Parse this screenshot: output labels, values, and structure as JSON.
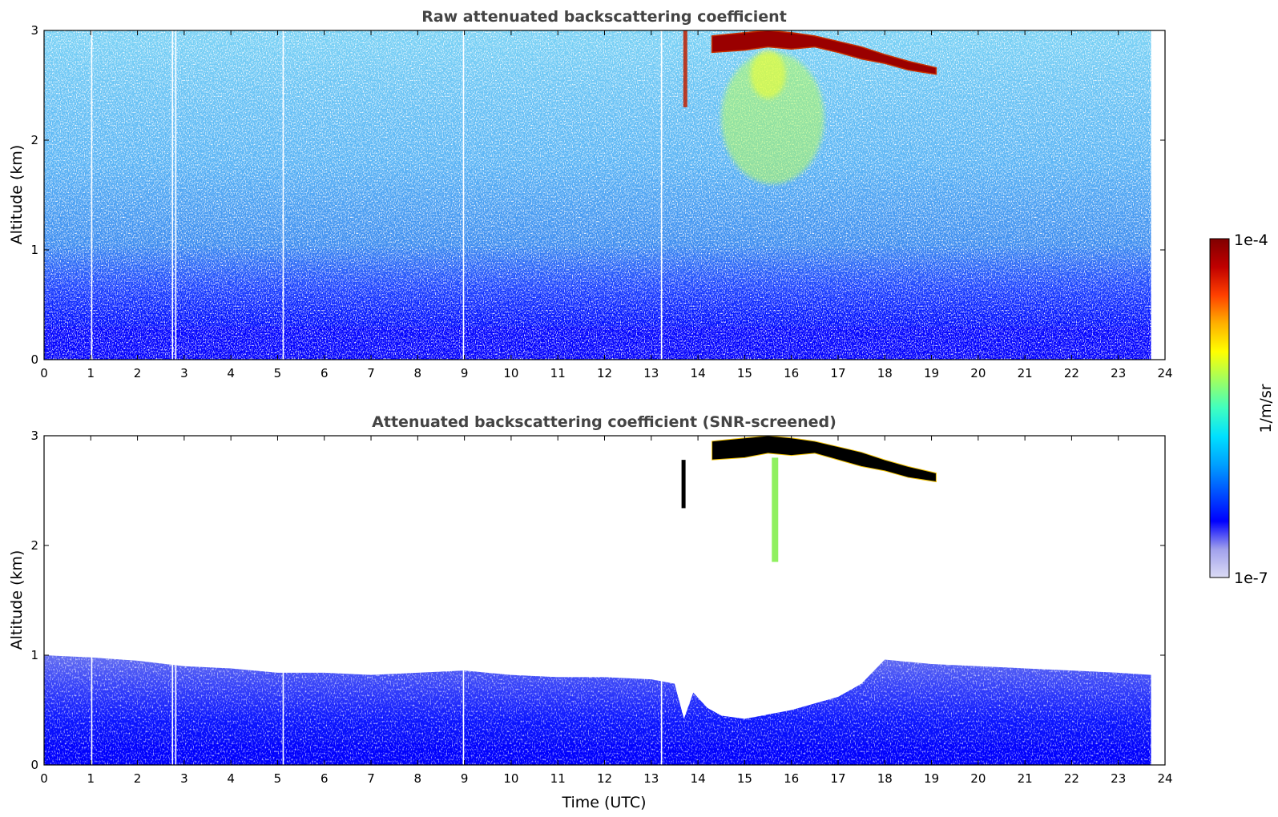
{
  "chart_data": [
    {
      "type": "heatmap",
      "title": "Raw attenuated backscattering coefficient",
      "xlabel": "",
      "ylabel": "Altitude (km)",
      "xlim": [
        0,
        24
      ],
      "ylim": [
        0,
        3
      ],
      "x_ticks": [
        "0",
        "1",
        "2",
        "3",
        "4",
        "5",
        "6",
        "7",
        "8",
        "9",
        "10",
        "11",
        "12",
        "13",
        "14",
        "15",
        "16",
        "17",
        "18",
        "19",
        "20",
        "21",
        "22",
        "23",
        "24"
      ],
      "y_ticks": [
        "0",
        "1",
        "2",
        "3"
      ],
      "data_end_time": 23.7,
      "dropout_times": [
        1.02,
        2.75,
        2.82,
        5.12,
        8.98,
        13.22
      ],
      "surface_layer_top_km": 0.6,
      "cloud_layer": {
        "times": [
          14.3,
          15.0,
          15.5,
          16.0,
          16.5,
          17.0,
          17.5,
          18.0,
          18.5,
          19.1
        ],
        "base_km": [
          2.8,
          2.82,
          2.85,
          2.83,
          2.85,
          2.8,
          2.74,
          2.7,
          2.64,
          2.6
        ],
        "top_km": [
          2.95,
          2.98,
          3.0,
          2.98,
          2.95,
          2.9,
          2.85,
          2.78,
          2.72,
          2.66
        ]
      },
      "virga_plume": {
        "time_range": [
          14.4,
          16.6
        ],
        "center": 15.6,
        "altitude_range_km": [
          1.6,
          2.8
        ]
      },
      "cloud_streak": {
        "time": 13.72,
        "altitude_range_km": [
          2.3,
          3.0
        ]
      }
    },
    {
      "type": "heatmap",
      "title": "Attenuated backscattering coefficient (SNR-screened)",
      "xlabel": "Time (UTC)",
      "ylabel": "Altitude (km)",
      "xlim": [
        0,
        24
      ],
      "ylim": [
        0,
        3
      ],
      "x_ticks": [
        "0",
        "1",
        "2",
        "3",
        "4",
        "5",
        "6",
        "7",
        "8",
        "9",
        "10",
        "11",
        "12",
        "13",
        "14",
        "15",
        "16",
        "17",
        "18",
        "19",
        "20",
        "21",
        "22",
        "23",
        "24"
      ],
      "y_ticks": [
        "0",
        "1",
        "2",
        "3"
      ],
      "data_end_time": 23.7,
      "boundary_layer_top": {
        "times": [
          0,
          1,
          2,
          3,
          4,
          5,
          6,
          7,
          8,
          9,
          10,
          11,
          12,
          13,
          13.5,
          13.7,
          13.9,
          14.2,
          14.5,
          15.0,
          15.5,
          16.0,
          16.5,
          17.0,
          17.5,
          18,
          19,
          20,
          21,
          22,
          23,
          23.7
        ],
        "altitude_km": [
          1.0,
          0.98,
          0.95,
          0.9,
          0.88,
          0.84,
          0.84,
          0.82,
          0.84,
          0.86,
          0.82,
          0.8,
          0.8,
          0.78,
          0.74,
          0.42,
          0.66,
          0.52,
          0.45,
          0.42,
          0.46,
          0.5,
          0.56,
          0.62,
          0.74,
          0.96,
          0.92,
          0.9,
          0.88,
          0.86,
          0.84,
          0.82
        ]
      },
      "cloud_layer": {
        "times": [
          14.3,
          15.0,
          15.5,
          16.0,
          16.5,
          17.0,
          17.5,
          18.0,
          18.5,
          19.1
        ],
        "base_km": [
          2.78,
          2.8,
          2.84,
          2.82,
          2.84,
          2.78,
          2.72,
          2.68,
          2.62,
          2.58
        ],
        "top_km": [
          2.95,
          2.98,
          3.0,
          2.98,
          2.95,
          2.9,
          2.85,
          2.78,
          2.72,
          2.66
        ]
      },
      "virga_streak": {
        "time": 15.65,
        "altitude_range_km": [
          1.85,
          2.8
        ]
      }
    }
  ],
  "colorbar": {
    "label": "1/m/sr",
    "max_label": "1e-4",
    "min_label": "1e-7",
    "scale": "log",
    "range": [
      1e-07,
      0.0001
    ],
    "colormap": [
      "#dcdcf5",
      "#a0a0ec",
      "#0000ff",
      "#0050ff",
      "#00a0ff",
      "#00e0ff",
      "#40ffc0",
      "#a0ff60",
      "#ffff00",
      "#ffb000",
      "#ff4000",
      "#c00000",
      "#800000"
    ]
  }
}
